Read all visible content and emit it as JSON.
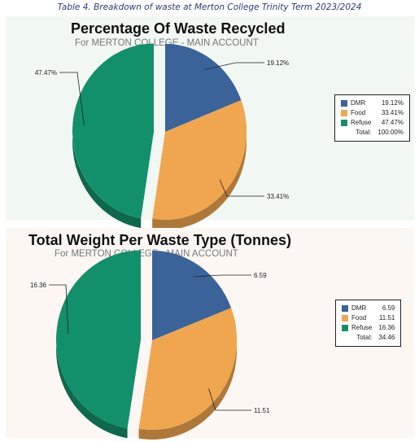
{
  "caption": "Table 4. Breakdown of waste at Merton College Trinity Term 2023/2024",
  "colors": {
    "DMR": "#3a639a",
    "Food": "#f0a64f",
    "Refuse": "#12906c"
  },
  "chart_data": [
    {
      "type": "pie",
      "title": "Percentage Of Waste Recycled",
      "subtitle": "For MERTON COLLEGE - MAIN ACCOUNT",
      "categories": [
        "DMR",
        "Food",
        "Refuse"
      ],
      "values": [
        19.12,
        33.41,
        47.47
      ],
      "value_labels": [
        "19.12%",
        "33.41%",
        "47.47%"
      ],
      "legend_values": [
        "19.12%",
        "33.41%",
        "47.47%"
      ],
      "total_label": "Total:",
      "total_value": "100.00%",
      "legend_position": "right",
      "exploded": "Refuse"
    },
    {
      "type": "pie",
      "title": "Total Weight Per Waste Type (Tonnes)",
      "subtitle": "For MERTON COLLEGE - MAIN ACCOUNT",
      "categories": [
        "DMR",
        "Food",
        "Refuse"
      ],
      "values": [
        6.59,
        11.51,
        16.36
      ],
      "value_labels": [
        "6.59",
        "11.51",
        "16.36"
      ],
      "legend_values": [
        "6.59",
        "11.51",
        "16.36"
      ],
      "total_label": "Total:",
      "total_value": "34.46",
      "legend_position": "right",
      "exploded": "Refuse"
    }
  ]
}
